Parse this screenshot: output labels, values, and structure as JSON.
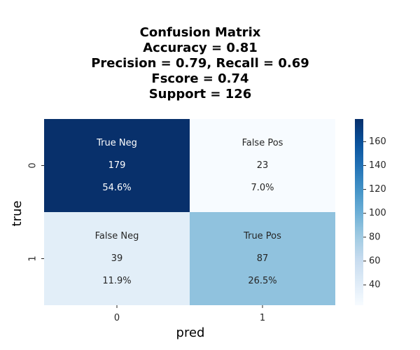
{
  "chart_data": {
    "type": "heatmap",
    "title_lines": [
      "Confusion Matrix",
      "Accuracy = 0.81",
      "Precision = 0.79, Recall = 0.69",
      "Fscore = 0.74",
      "Support = 126"
    ],
    "xlabel": "pred",
    "ylabel": "true",
    "x_categories": [
      "0",
      "1"
    ],
    "y_categories": [
      "0",
      "1"
    ],
    "cells": [
      [
        {
          "label": "True Neg",
          "count": "179",
          "percent": "54.6%",
          "value": 179
        },
        {
          "label": "False Pos",
          "count": "23",
          "percent": "7.0%",
          "value": 23
        }
      ],
      [
        {
          "label": "False Neg",
          "count": "39",
          "percent": "11.9%",
          "value": 39
        },
        {
          "label": "True Pos",
          "count": "87",
          "percent": "26.5%",
          "value": 87
        }
      ]
    ],
    "colormap": "Blues",
    "color_range": [
      23,
      179
    ],
    "colorbar_ticks": [
      "40",
      "60",
      "80",
      "100",
      "120",
      "140",
      "160"
    ],
    "colors": {
      "low": "#f7fbff",
      "mid": "#8fc1de",
      "high": "#08306b"
    },
    "grid": false,
    "legend": "colorbar-right"
  }
}
